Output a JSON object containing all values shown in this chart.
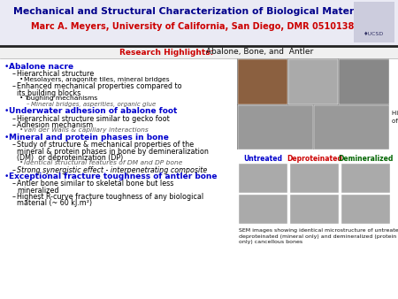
{
  "title_line1": "Mechanical and Structural Characterization of Biological Materials",
  "title_line2": "Marc A. Meyers, University of California, San Diego, DMR 0510138",
  "title_color1": "#00008B",
  "title_color2": "#CC0000",
  "header_bg": "#E8EAF0",
  "highlights_label": "Research Highlights:",
  "highlights_rest": " Abalone, Bone, and  Antler",
  "right_caption1": "Hierarchical structure",
  "right_caption2": "of abalone pedal foot",
  "bottom_caption": "SEM images showing identical microstructure of untreated,\ndeproteinated (mineral only) and demineralized (protein\nonly) cancellous bones",
  "untreated_label": "Untreated",
  "deproteinated_label": "Deproteinated",
  "demineralized_label": "Demineralized",
  "untreated_color": "#0000CC",
  "deproteinated_color": "#CC0000",
  "demineralized_color": "#006400",
  "bg_color": "#FFFFFF",
  "bullet_items": [
    {
      "text": "Abalone nacre",
      "color": "#0000CC",
      "level": 0,
      "bold": true,
      "italic": false,
      "continuation": false
    },
    {
      "text": "Hierarchical structure",
      "color": "#000000",
      "level": 1,
      "bold": false,
      "italic": false,
      "continuation": false
    },
    {
      "text": "Mesolayers, aragonite tiles, mineral bridges",
      "color": "#000000",
      "level": 2,
      "bold": false,
      "italic": false,
      "continuation": false
    },
    {
      "text": "Enhanced mechanical properties compared to",
      "color": "#000000",
      "level": 1,
      "bold": false,
      "italic": false,
      "continuation": false
    },
    {
      "text": "its building blocks",
      "color": "#000000",
      "level": 1,
      "bold": false,
      "italic": false,
      "continuation": true
    },
    {
      "text": "Toughing mechanisms",
      "color": "#000000",
      "level": 2,
      "bold": false,
      "italic": false,
      "continuation": false
    },
    {
      "text": "Mineral bridges, asperities, organic glue",
      "color": "#555555",
      "level": 3,
      "bold": false,
      "italic": true,
      "continuation": false
    },
    {
      "text": "Underwater adhesion of abalone foot",
      "color": "#0000CC",
      "level": 0,
      "bold": true,
      "italic": false,
      "continuation": false
    },
    {
      "text": "Hierarchical structure similar to gecko foot",
      "color": "#000000",
      "level": 1,
      "bold": false,
      "italic": false,
      "continuation": false
    },
    {
      "text": "Adhesion mechanism",
      "color": "#000000",
      "level": 1,
      "bold": false,
      "italic": false,
      "continuation": false
    },
    {
      "text": "van der Walls & capillary interactions",
      "color": "#555555",
      "level": 2,
      "bold": false,
      "italic": true,
      "continuation": false
    },
    {
      "text": "Mineral and protein phases in bone",
      "color": "#0000CC",
      "level": 0,
      "bold": true,
      "italic": false,
      "continuation": false
    },
    {
      "text": "Study of structure & mechanical properties of the",
      "color": "#000000",
      "level": 1,
      "bold": false,
      "italic": false,
      "continuation": false
    },
    {
      "text": "mineral & protein phases in bone by demineralization",
      "color": "#000000",
      "level": 1,
      "bold": false,
      "italic": false,
      "continuation": true
    },
    {
      "text": "(DM)  or deproteinization (DP)",
      "color": "#000000",
      "level": 1,
      "bold": false,
      "italic": false,
      "continuation": true
    },
    {
      "text": "Identical structural features of DM and DP bone",
      "color": "#555555",
      "level": 2,
      "bold": false,
      "italic": true,
      "continuation": false
    },
    {
      "text": "Strong synergistic effect - interpenetrating composite",
      "color": "#000000",
      "level": 1,
      "bold": false,
      "italic": true,
      "continuation": false
    },
    {
      "text": "Exceptional fracture toughness of antler bone",
      "color": "#0000CC",
      "level": 0,
      "bold": true,
      "italic": false,
      "continuation": false
    },
    {
      "text": "Antler bone similar to skeletal bone but less",
      "color": "#000000",
      "level": 1,
      "bold": false,
      "italic": false,
      "continuation": false
    },
    {
      "text": "mineralized",
      "color": "#000000",
      "level": 1,
      "bold": false,
      "italic": false,
      "continuation": true
    },
    {
      "text": "Highest R-curve fracture toughness of any biological",
      "color": "#000000",
      "level": 1,
      "bold": false,
      "italic": false,
      "continuation": false
    },
    {
      "text": "material (~ 60 kJ.m²)",
      "color": "#000000",
      "level": 1,
      "bold": false,
      "italic": false,
      "continuation": true
    }
  ]
}
